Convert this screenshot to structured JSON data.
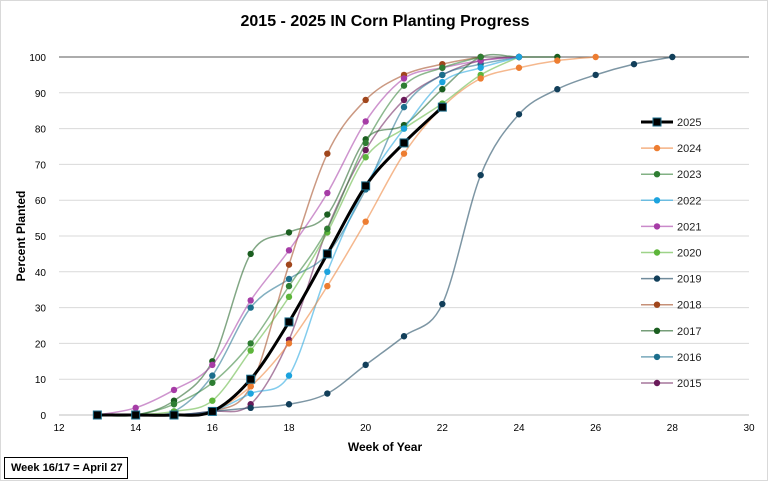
{
  "chart_data": {
    "type": "line",
    "title": "2015 - 2025 IN Corn Planting Progress",
    "xlabel": "Week of Year",
    "ylabel": "Percent Planted",
    "xlim": [
      12,
      30
    ],
    "ylim": [
      0,
      100
    ],
    "xticks": [
      12,
      14,
      16,
      18,
      20,
      22,
      24,
      26,
      28,
      30
    ],
    "yticks": [
      0,
      10,
      20,
      30,
      40,
      50,
      60,
      70,
      80,
      90,
      100
    ],
    "grid": "horizontal",
    "legend": "right",
    "series": [
      {
        "name": "2025",
        "color": "#000000",
        "marker": "square",
        "x": [
          13,
          14,
          15,
          16,
          17,
          18,
          19,
          20,
          21,
          22
        ],
        "values": [
          0,
          0,
          0,
          1,
          10,
          26,
          45,
          64,
          76,
          86
        ]
      },
      {
        "name": "2024",
        "color": "#ED7D31",
        "x": [
          13,
          14,
          15,
          16,
          17,
          18,
          19,
          20,
          21,
          22,
          23,
          24,
          25,
          26
        ],
        "values": [
          0,
          0,
          0,
          1,
          8,
          20,
          36,
          54,
          73,
          86,
          94,
          97,
          99,
          100
        ]
      },
      {
        "name": "2023",
        "color": "#2E7D32",
        "x": [
          13,
          14,
          15,
          16,
          17,
          18,
          19,
          20,
          21,
          22,
          23
        ],
        "values": [
          0,
          0,
          3,
          9,
          20,
          36,
          52,
          76,
          92,
          97,
          100
        ]
      },
      {
        "name": "2022",
        "color": "#1CA3DE",
        "x": [
          13,
          14,
          15,
          16,
          17,
          18,
          19,
          20,
          21,
          22,
          23,
          24
        ],
        "values": [
          0,
          0,
          0,
          1,
          6,
          11,
          40,
          64,
          80,
          93,
          97,
          100
        ]
      },
      {
        "name": "2021",
        "color": "#A63CA6",
        "x": [
          13,
          14,
          15,
          16,
          17,
          18,
          19,
          20,
          21,
          22,
          23,
          24
        ],
        "values": [
          0,
          2,
          7,
          14,
          32,
          46,
          62,
          82,
          94,
          97,
          99,
          100
        ]
      },
      {
        "name": "2020",
        "color": "#5DB53A",
        "x": [
          13,
          14,
          15,
          16,
          17,
          18,
          19,
          20,
          21,
          22,
          23,
          24
        ],
        "values": [
          0,
          0,
          1,
          4,
          18,
          33,
          51,
          72,
          80,
          87,
          95,
          100
        ]
      },
      {
        "name": "2019",
        "color": "#123F5A",
        "x": [
          13,
          14,
          15,
          16,
          17,
          18,
          19,
          20,
          21,
          22,
          23,
          24,
          25,
          26,
          27,
          28
        ],
        "values": [
          0,
          0,
          0,
          1,
          2,
          3,
          6,
          14,
          22,
          31,
          67,
          84,
          91,
          95,
          98,
          100
        ]
      },
      {
        "name": "2018",
        "color": "#A0461C",
        "x": [
          13,
          14,
          15,
          16,
          17,
          18,
          19,
          20,
          21,
          22,
          23
        ],
        "values": [
          0,
          0,
          0,
          1,
          8,
          42,
          73,
          88,
          95,
          98,
          100
        ]
      },
      {
        "name": "2017",
        "color": "#1B5E20",
        "x": [
          13,
          14,
          15,
          16,
          17,
          18,
          19,
          20,
          21,
          22,
          23,
          24,
          25
        ],
        "values": [
          0,
          0,
          4,
          15,
          45,
          51,
          56,
          77,
          81,
          91,
          100,
          100,
          100
        ]
      },
      {
        "name": "2016",
        "color": "#1B6E8C",
        "x": [
          13,
          14,
          15,
          16,
          17,
          18,
          19,
          20,
          21,
          22,
          23,
          24
        ],
        "values": [
          0,
          0,
          1,
          11,
          30,
          38,
          45,
          63,
          86,
          95,
          98,
          100
        ]
      },
      {
        "name": "2015",
        "color": "#6A1B5A",
        "x": [
          13,
          14,
          15,
          16,
          17,
          18,
          19,
          20,
          21,
          22,
          23,
          24
        ],
        "values": [
          0,
          0,
          0,
          1,
          3,
          21,
          52,
          74,
          88,
          95,
          99,
          100
        ]
      }
    ]
  },
  "note": "Week 16/17 = April 27"
}
